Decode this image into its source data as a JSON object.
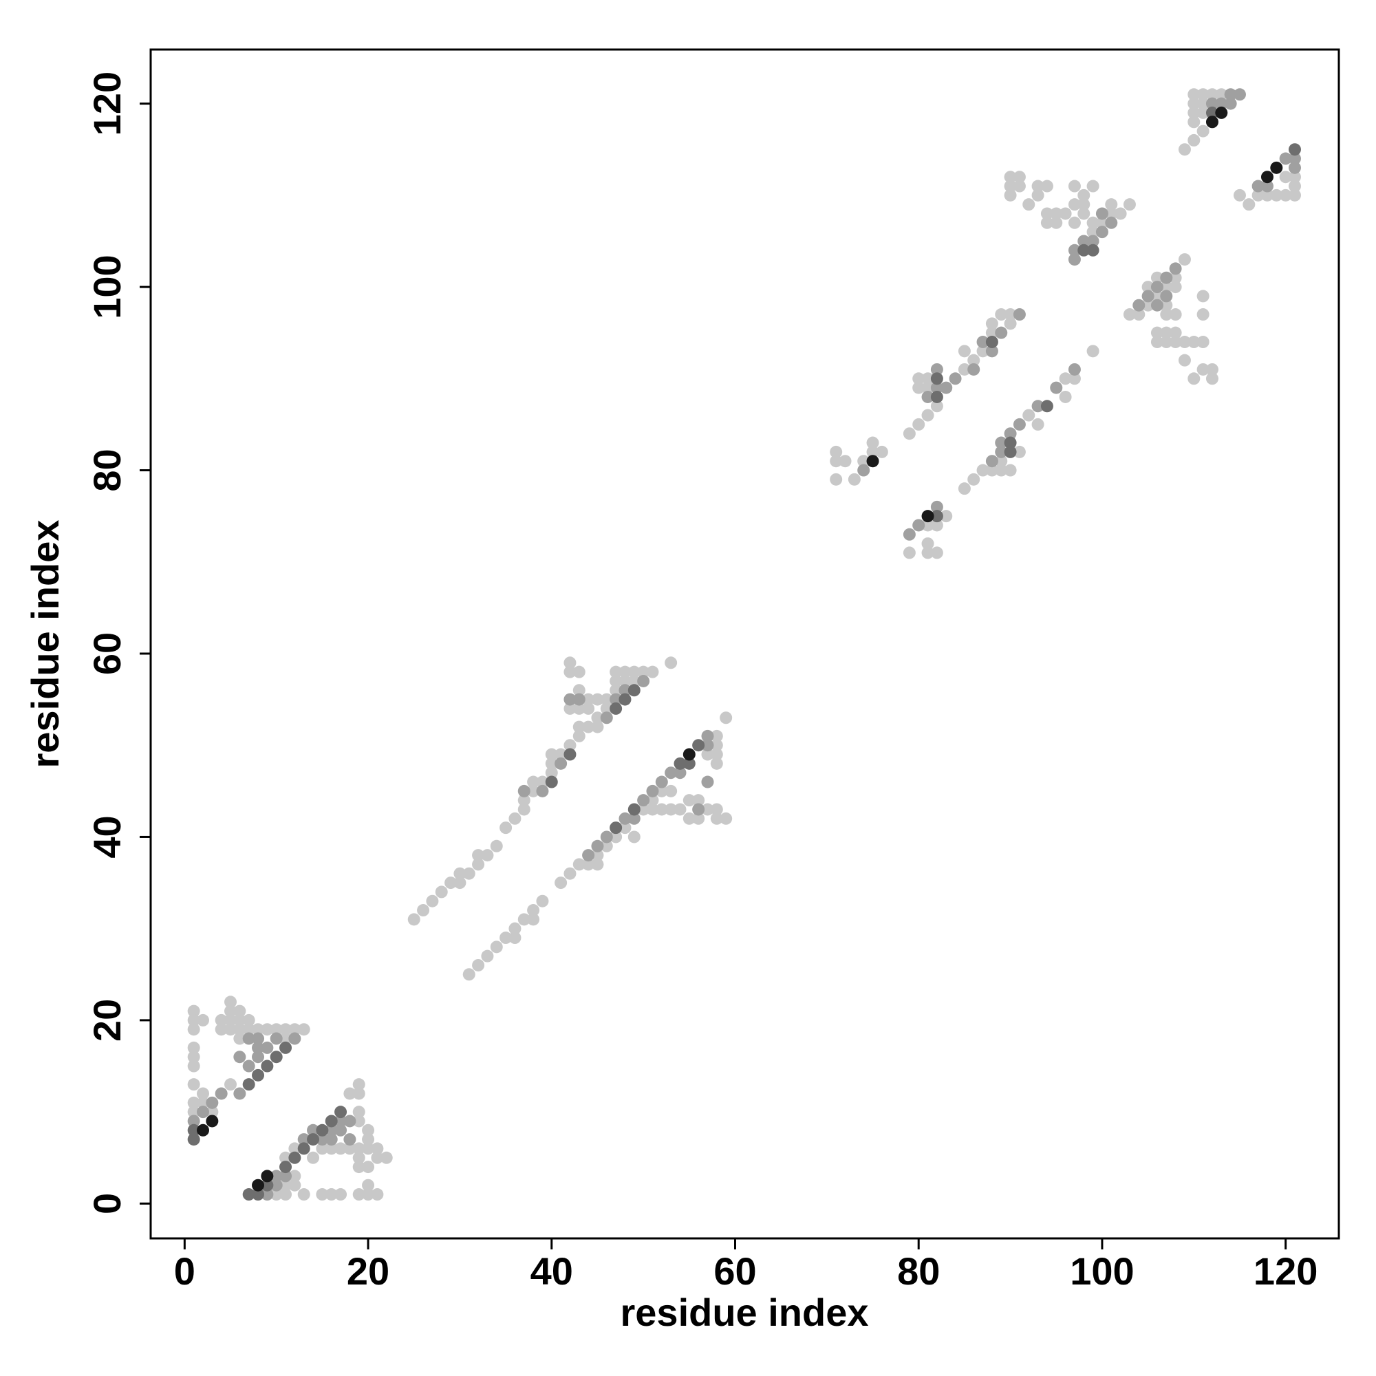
{
  "chart_data": {
    "type": "scatter",
    "xlabel": "residue index",
    "ylabel": "residue index",
    "xlim": [
      -3.7,
      125.8
    ],
    "ylim": [
      -3.8,
      125.9
    ],
    "xticks": [
      0,
      20,
      40,
      60,
      80,
      100,
      120
    ],
    "yticks": [
      0,
      20,
      40,
      60,
      80,
      100,
      120
    ],
    "series": [
      {
        "color": "#c8c8c8",
        "x": [
          1,
          1,
          1,
          2,
          1,
          1,
          1,
          1,
          1,
          1,
          2,
          2,
          3,
          4,
          4,
          5,
          5,
          5,
          5,
          5,
          6,
          6,
          6,
          6,
          7,
          7,
          8,
          9,
          10,
          11,
          12,
          13,
          11,
          10,
          11,
          13,
          15,
          16,
          17,
          19,
          20,
          21,
          20,
          11,
          12,
          14,
          15,
          16,
          17,
          18,
          19,
          19,
          20,
          20,
          21,
          21,
          22,
          19,
          20,
          19,
          19,
          18,
          19,
          19,
          20,
          12,
          12,
          11,
          25,
          26,
          27,
          28,
          29,
          30,
          30,
          31,
          32,
          32,
          33,
          34,
          35,
          36,
          37,
          37,
          38,
          38,
          39,
          40,
          40,
          40,
          41,
          42,
          43,
          43,
          44,
          45,
          45,
          46,
          47,
          47,
          47,
          48,
          49,
          50,
          51,
          53,
          42,
          42,
          43,
          43,
          42,
          43,
          44,
          44,
          45,
          46,
          48,
          49,
          31,
          32,
          33,
          34,
          35,
          36,
          36,
          37,
          38,
          38,
          39,
          41,
          42,
          43,
          44,
          45,
          45,
          46,
          47,
          48,
          49,
          50,
          51,
          51,
          52,
          53,
          53,
          54,
          55,
          56,
          57,
          58,
          58,
          59,
          55,
          56,
          57,
          58,
          58,
          58,
          58,
          59,
          52,
          71,
          71,
          71,
          72,
          73,
          74,
          75,
          75,
          76,
          79,
          80,
          81,
          82,
          81,
          81,
          80,
          80,
          85,
          85,
          86,
          87,
          88,
          88,
          89,
          90,
          90,
          79,
          81,
          81,
          81,
          82,
          83,
          85,
          86,
          87,
          88,
          89,
          90,
          89,
          91,
          92,
          93,
          96,
          96,
          97,
          99,
          82,
          90,
          90,
          90,
          91,
          91,
          92,
          93,
          93,
          94,
          94,
          94,
          95,
          95,
          97,
          97,
          97,
          98,
          98,
          98,
          99,
          99,
          99,
          100,
          101,
          101,
          102,
          103,
          96,
          103,
          104,
          105,
          106,
          107,
          107,
          107,
          108,
          108,
          108,
          109,
          106,
          106,
          107,
          108,
          107,
          108,
          109,
          109,
          110,
          111,
          111,
          111,
          111,
          112,
          112,
          110,
          106,
          105,
          109,
          110,
          111,
          110,
          110,
          110,
          110,
          111,
          112,
          111,
          111,
          113,
          116,
          117,
          118,
          119,
          120,
          121,
          121,
          121,
          120,
          115
        ],
        "values": [
          21,
          20,
          19,
          20,
          17,
          16,
          15,
          13,
          11,
          10,
          12,
          11,
          10,
          20,
          19,
          22,
          21,
          20,
          19,
          13,
          21,
          20,
          19,
          18,
          20,
          19,
          19,
          19,
          19,
          19,
          19,
          19,
          18,
          1,
          1,
          1,
          1,
          1,
          1,
          1,
          1,
          1,
          2,
          5,
          6,
          5,
          6,
          6,
          6,
          6,
          6,
          5,
          7,
          6,
          6,
          5,
          5,
          4,
          4,
          13,
          12,
          12,
          10,
          9,
          8,
          2,
          3,
          2,
          31,
          32,
          33,
          34,
          35,
          36,
          35,
          36,
          37,
          38,
          38,
          39,
          41,
          42,
          43,
          44,
          45,
          46,
          46,
          47,
          48,
          49,
          49,
          50,
          51,
          52,
          52,
          52,
          53,
          54,
          56,
          57,
          58,
          58,
          58,
          58,
          58,
          59,
          59,
          58,
          58,
          56,
          54,
          54,
          55,
          54,
          55,
          55,
          57,
          57,
          25,
          26,
          27,
          28,
          29,
          29,
          30,
          31,
          31,
          32,
          33,
          35,
          36,
          37,
          37,
          37,
          38,
          39,
          40,
          41,
          40,
          43,
          43,
          44,
          43,
          43,
          45,
          43,
          42,
          42,
          43,
          43,
          42,
          42,
          44,
          44,
          49,
          49,
          48,
          50,
          51,
          53,
          45,
          82,
          81,
          79,
          81,
          79,
          81,
          83,
          82,
          82,
          84,
          85,
          86,
          87,
          90,
          89,
          90,
          89,
          91,
          93,
          92,
          93,
          95,
          96,
          97,
          96,
          97,
          71,
          74,
          72,
          71,
          71,
          75,
          78,
          79,
          80,
          80,
          80,
          80,
          81,
          82,
          86,
          85,
          88,
          90,
          90,
          93,
          74,
          112,
          111,
          110,
          112,
          111,
          109,
          111,
          110,
          111,
          108,
          107,
          108,
          107,
          111,
          109,
          107,
          110,
          109,
          108,
          111,
          107,
          106,
          107,
          109,
          108,
          108,
          109,
          108,
          97,
          97,
          98,
          99,
          100,
          98,
          97,
          101,
          100,
          97,
          103,
          94,
          95,
          95,
          95,
          94,
          94,
          94,
          92,
          90,
          94,
          91,
          99,
          97,
          91,
          90,
          94,
          101,
          100,
          115,
          116,
          117,
          121,
          120,
          119,
          118,
          121,
          121,
          119,
          120,
          121,
          109,
          110,
          110,
          110,
          110,
          110,
          111,
          112,
          112,
          110
        ]
      },
      {
        "color": "#a0a0a0",
        "x": [
          1,
          2,
          3,
          4,
          6,
          7,
          8,
          9,
          8,
          7,
          6,
          8,
          10,
          12,
          9,
          10,
          10,
          11,
          13,
          14,
          15,
          16,
          17,
          17,
          18,
          18,
          16,
          37,
          39,
          41,
          42,
          43,
          46,
          47,
          48,
          50,
          44,
          45,
          46,
          48,
          49,
          50,
          51,
          52,
          53,
          54,
          57,
          57,
          56,
          57,
          74,
          81,
          82,
          82,
          83,
          84,
          86,
          87,
          89,
          91,
          88,
          79,
          80,
          82,
          88,
          89,
          89,
          90,
          91,
          93,
          95,
          97,
          97,
          97,
          98,
          99,
          100,
          100,
          101,
          104,
          105,
          106,
          107,
          108,
          106,
          107,
          112,
          113,
          114,
          115,
          114,
          118,
          120,
          121,
          121,
          117
        ],
        "values": [
          9,
          10,
          11,
          12,
          12,
          15,
          16,
          17,
          17,
          18,
          16,
          18,
          18,
          18,
          1,
          2,
          3,
          3,
          7,
          8,
          7,
          8,
          8,
          9,
          9,
          7,
          7,
          45,
          45,
          48,
          55,
          55,
          53,
          55,
          56,
          57,
          38,
          39,
          40,
          42,
          42,
          44,
          45,
          46,
          47,
          47,
          50,
          51,
          43,
          46,
          80,
          88,
          89,
          91,
          89,
          90,
          91,
          94,
          95,
          97,
          93,
          73,
          74,
          76,
          81,
          82,
          83,
          84,
          85,
          87,
          89,
          91,
          103,
          104,
          105,
          105,
          106,
          108,
          107,
          98,
          99,
          100,
          101,
          102,
          98,
          99,
          120,
          120,
          121,
          121,
          120,
          111,
          114,
          114,
          113,
          111
        ]
      },
      {
        "color": "#6e6e6e",
        "x": [
          1,
          1,
          7,
          8,
          9,
          10,
          11,
          7,
          8,
          11,
          12,
          13,
          14,
          15,
          16,
          17,
          9,
          40,
          42,
          47,
          48,
          49,
          47,
          49,
          55,
          56,
          54,
          82,
          82,
          88,
          82,
          90,
          94,
          90,
          98,
          99,
          112,
          121
        ],
        "values": [
          7,
          8,
          13,
          14,
          15,
          16,
          17,
          1,
          1,
          4,
          5,
          6,
          7,
          8,
          9,
          10,
          2,
          46,
          49,
          54,
          55,
          56,
          41,
          43,
          48,
          50,
          48,
          88,
          90,
          94,
          75,
          82,
          87,
          83,
          104,
          104,
          119,
          115
        ]
      },
      {
        "color": "#1a1a1a",
        "x": [
          2,
          3,
          8,
          9,
          55,
          75,
          81,
          112,
          113,
          118,
          119
        ],
        "values": [
          8,
          9,
          2,
          3,
          49,
          81,
          75,
          118,
          119,
          112,
          113
        ]
      }
    ]
  }
}
